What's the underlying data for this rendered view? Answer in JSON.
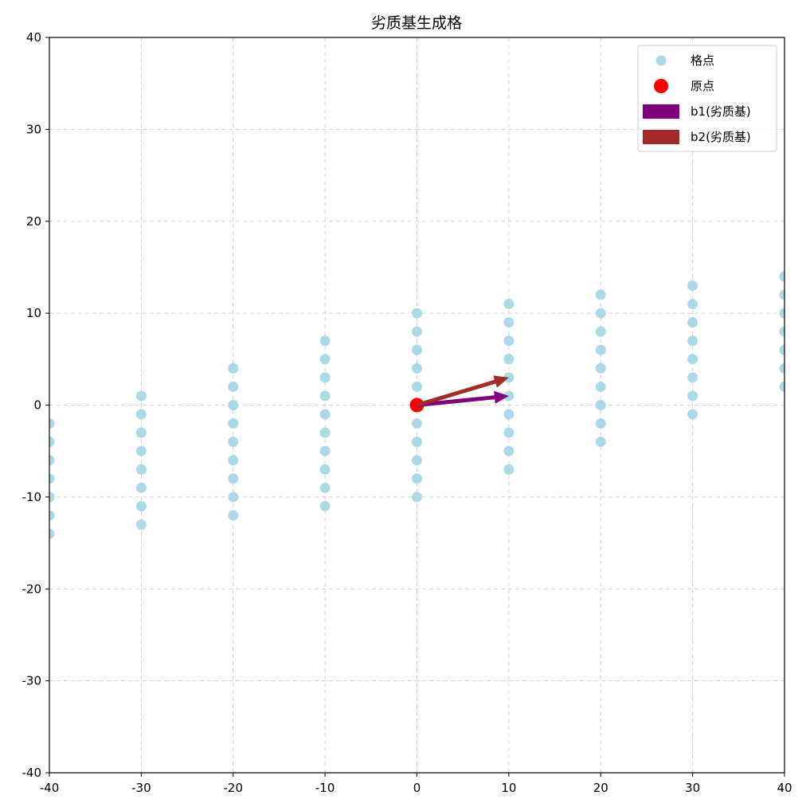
{
  "chart_data": {
    "type": "scatter",
    "title": "劣质基生成格",
    "xlabel": "",
    "ylabel": "",
    "xlim": [
      -40,
      40
    ],
    "ylim": [
      -40,
      40
    ],
    "xticks": [
      -40,
      -30,
      -20,
      -10,
      0,
      10,
      20,
      30,
      40
    ],
    "yticks": [
      -40,
      -30,
      -20,
      -10,
      0,
      10,
      20,
      30,
      40
    ],
    "grid": true,
    "legend_position": "top-right",
    "series": [
      {
        "name": "格点",
        "kind": "points",
        "color": "#add8e6",
        "points": [
          [
            -40,
            -2
          ],
          [
            -40,
            -4
          ],
          [
            -40,
            -6
          ],
          [
            -40,
            -8
          ],
          [
            -40,
            -10
          ],
          [
            -40,
            -12
          ],
          [
            -40,
            -14
          ],
          [
            -30,
            1
          ],
          [
            -30,
            -1
          ],
          [
            -30,
            -3
          ],
          [
            -30,
            -5
          ],
          [
            -30,
            -7
          ],
          [
            -30,
            -9
          ],
          [
            -30,
            -11
          ],
          [
            -30,
            -13
          ],
          [
            -20,
            4
          ],
          [
            -20,
            2
          ],
          [
            -20,
            0
          ],
          [
            -20,
            -2
          ],
          [
            -20,
            -4
          ],
          [
            -20,
            -6
          ],
          [
            -20,
            -8
          ],
          [
            -20,
            -10
          ],
          [
            -20,
            -12
          ],
          [
            -10,
            7
          ],
          [
            -10,
            5
          ],
          [
            -10,
            3
          ],
          [
            -10,
            1
          ],
          [
            -10,
            -1
          ],
          [
            -10,
            -3
          ],
          [
            -10,
            -5
          ],
          [
            -10,
            -7
          ],
          [
            -10,
            -9
          ],
          [
            -10,
            -11
          ],
          [
            0,
            10
          ],
          [
            0,
            8
          ],
          [
            0,
            6
          ],
          [
            0,
            4
          ],
          [
            0,
            2
          ],
          [
            0,
            0
          ],
          [
            0,
            -2
          ],
          [
            0,
            -4
          ],
          [
            0,
            -6
          ],
          [
            0,
            -8
          ],
          [
            0,
            -10
          ],
          [
            10,
            11
          ],
          [
            10,
            9
          ],
          [
            10,
            7
          ],
          [
            10,
            5
          ],
          [
            10,
            3
          ],
          [
            10,
            1
          ],
          [
            10,
            -1
          ],
          [
            10,
            -3
          ],
          [
            10,
            -5
          ],
          [
            10,
            -7
          ],
          [
            20,
            12
          ],
          [
            20,
            10
          ],
          [
            20,
            8
          ],
          [
            20,
            6
          ],
          [
            20,
            4
          ],
          [
            20,
            2
          ],
          [
            20,
            0
          ],
          [
            20,
            -2
          ],
          [
            20,
            -4
          ],
          [
            30,
            13
          ],
          [
            30,
            11
          ],
          [
            30,
            9
          ],
          [
            30,
            7
          ],
          [
            30,
            5
          ],
          [
            30,
            3
          ],
          [
            30,
            1
          ],
          [
            30,
            -1
          ],
          [
            40,
            14
          ],
          [
            40,
            12
          ],
          [
            40,
            10
          ],
          [
            40,
            8
          ],
          [
            40,
            6
          ],
          [
            40,
            4
          ],
          [
            40,
            2
          ]
        ]
      },
      {
        "name": "原点",
        "kind": "points",
        "color": "#ff0000",
        "points": [
          [
            0,
            0
          ]
        ]
      },
      {
        "name": "b1(劣质基)",
        "kind": "vector",
        "color": "#800080",
        "from": [
          0,
          0
        ],
        "to": [
          10,
          1
        ]
      },
      {
        "name": "b2(劣质基)",
        "kind": "vector",
        "color": "#a52a2a",
        "from": [
          0,
          0
        ],
        "to": [
          10,
          3
        ]
      }
    ]
  }
}
